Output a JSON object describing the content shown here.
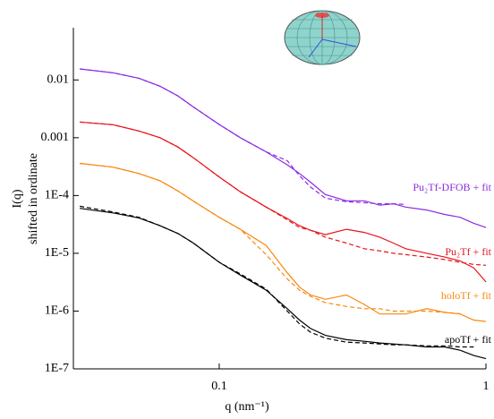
{
  "chart_data": {
    "type": "line",
    "x_label": "q (nm⁻¹)",
    "y_label": [
      "I(q)",
      "shifted in ordinate"
    ],
    "x": [
      0.03,
      0.04,
      0.05,
      0.06,
      0.07,
      0.08,
      0.1,
      0.12,
      0.15,
      0.18,
      0.2,
      0.22,
      0.25,
      0.3,
      0.35,
      0.4,
      0.45,
      0.5,
      0.6,
      0.7,
      0.8,
      0.9,
      1.0
    ],
    "xlim": [
      0.0284,
      1
    ],
    "ylim": [
      1e-07,
      0.08
    ],
    "log_x": true,
    "log_y": true,
    "xticks": [
      0.1,
      1
    ],
    "yticks": [
      0.01,
      0.001,
      {
        "value": 0.0001,
        "label": "1E-4"
      },
      {
        "value": 1e-05,
        "label": "1E-5"
      },
      {
        "value": 1e-06,
        "label": "1E-6"
      },
      {
        "value": 1e-07,
        "label": "1E-7"
      }
    ],
    "series": [
      {
        "name": "Pu₂Tf-DFOB + fit",
        "color": "#8a2be2",
        "values": [
          0.0155,
          0.0133,
          0.0107,
          0.0078,
          0.0053,
          0.0034,
          0.0017,
          0.001,
          0.00057,
          0.00034,
          0.00024,
          0.00017,
          0.000104,
          8.1e-05,
          8.1e-05,
          6.8e-05,
          7.2e-05,
          6.3e-05,
          5.6e-05,
          4.7e-05,
          4.2e-05,
          3.3e-05,
          2.8e-05
        ],
        "fit": [
          0.0155,
          0.0133,
          0.0107,
          0.0078,
          0.0053,
          0.0034,
          0.0017,
          0.001,
          0.00057,
          0.0004,
          0.00022,
          0.00014,
          9e-05,
          7.8e-05,
          7.5e-05,
          7.2e-05,
          7.2e-05,
          7e-05,
          null,
          null,
          null,
          null,
          null
        ]
      },
      {
        "name": "Pu₂Tf + fit",
        "color": "#e8141c",
        "values": [
          0.00187,
          0.00168,
          0.00131,
          0.001,
          0.00069,
          0.00045,
          0.00021,
          0.000116,
          6.3e-05,
          4e-05,
          3e-05,
          2.5e-05,
          2.1e-05,
          2.6e-05,
          2.3e-05,
          1.9e-05,
          1.5e-05,
          1.2e-05,
          1e-05,
          8.6e-06,
          7.4e-06,
          5.6e-06,
          3.2e-06
        ],
        "fit": [
          0.00187,
          0.00168,
          0.00131,
          0.001,
          0.00069,
          0.00045,
          0.00021,
          0.000116,
          6.3e-05,
          3.8e-05,
          2.8e-05,
          2.5e-05,
          1.9e-05,
          1.5e-05,
          1.2e-05,
          1.1e-05,
          1e-05,
          9.5e-06,
          8.6e-06,
          7.8e-06,
          7e-06,
          6.4e-06,
          6.2e-06
        ]
      },
      {
        "name": "holoTf + fit",
        "color": "#f7880f",
        "values": [
          0.00036,
          0.00031,
          0.00024,
          0.00018,
          0.00012,
          8e-05,
          4.2e-05,
          2.6e-05,
          1.37e-05,
          4.6e-06,
          2.6e-06,
          1.9e-06,
          1.6e-06,
          1.9e-06,
          1.3e-06,
          8.9e-07,
          8.9e-07,
          8.9e-07,
          1.1e-06,
          9.5e-07,
          8.9e-07,
          7e-07,
          6.6e-07
        ],
        "fit": [
          0.00036,
          0.00031,
          0.00024,
          0.00018,
          0.00012,
          8e-05,
          4.2e-05,
          2.6e-05,
          9.5e-06,
          3.6e-06,
          2.3e-06,
          1.8e-06,
          1.4e-06,
          1.2e-06,
          1.1e-06,
          1.1e-06,
          1e-06,
          1e-06,
          1e-06,
          9.5e-07,
          9e-07,
          null,
          null
        ]
      },
      {
        "name": "apoTf + fit",
        "color": "#000000",
        "values": [
          6e-05,
          5e-05,
          4.1e-05,
          3e-05,
          2.2e-05,
          1.5e-05,
          7e-06,
          4.2e-06,
          2.3e-06,
          1.1e-06,
          7e-07,
          5e-07,
          3.8e-07,
          3.2e-07,
          3e-07,
          2.8e-07,
          2.7e-07,
          2.6e-07,
          2.4e-07,
          2.4e-07,
          2.1e-07,
          1.7e-07,
          1.5e-07
        ],
        "fit": [
          6.5e-05,
          5.2e-05,
          4.2e-05,
          3e-05,
          2.2e-05,
          1.5e-05,
          7e-06,
          4.4e-06,
          2.4e-06,
          1e-06,
          6e-07,
          4.3e-07,
          3.4e-07,
          2.9e-07,
          2.8e-07,
          2.7e-07,
          2.6e-07,
          2.6e-07,
          2.5e-07,
          2.5e-07,
          2.4e-07,
          2.4e-07,
          null
        ]
      }
    ]
  }
}
